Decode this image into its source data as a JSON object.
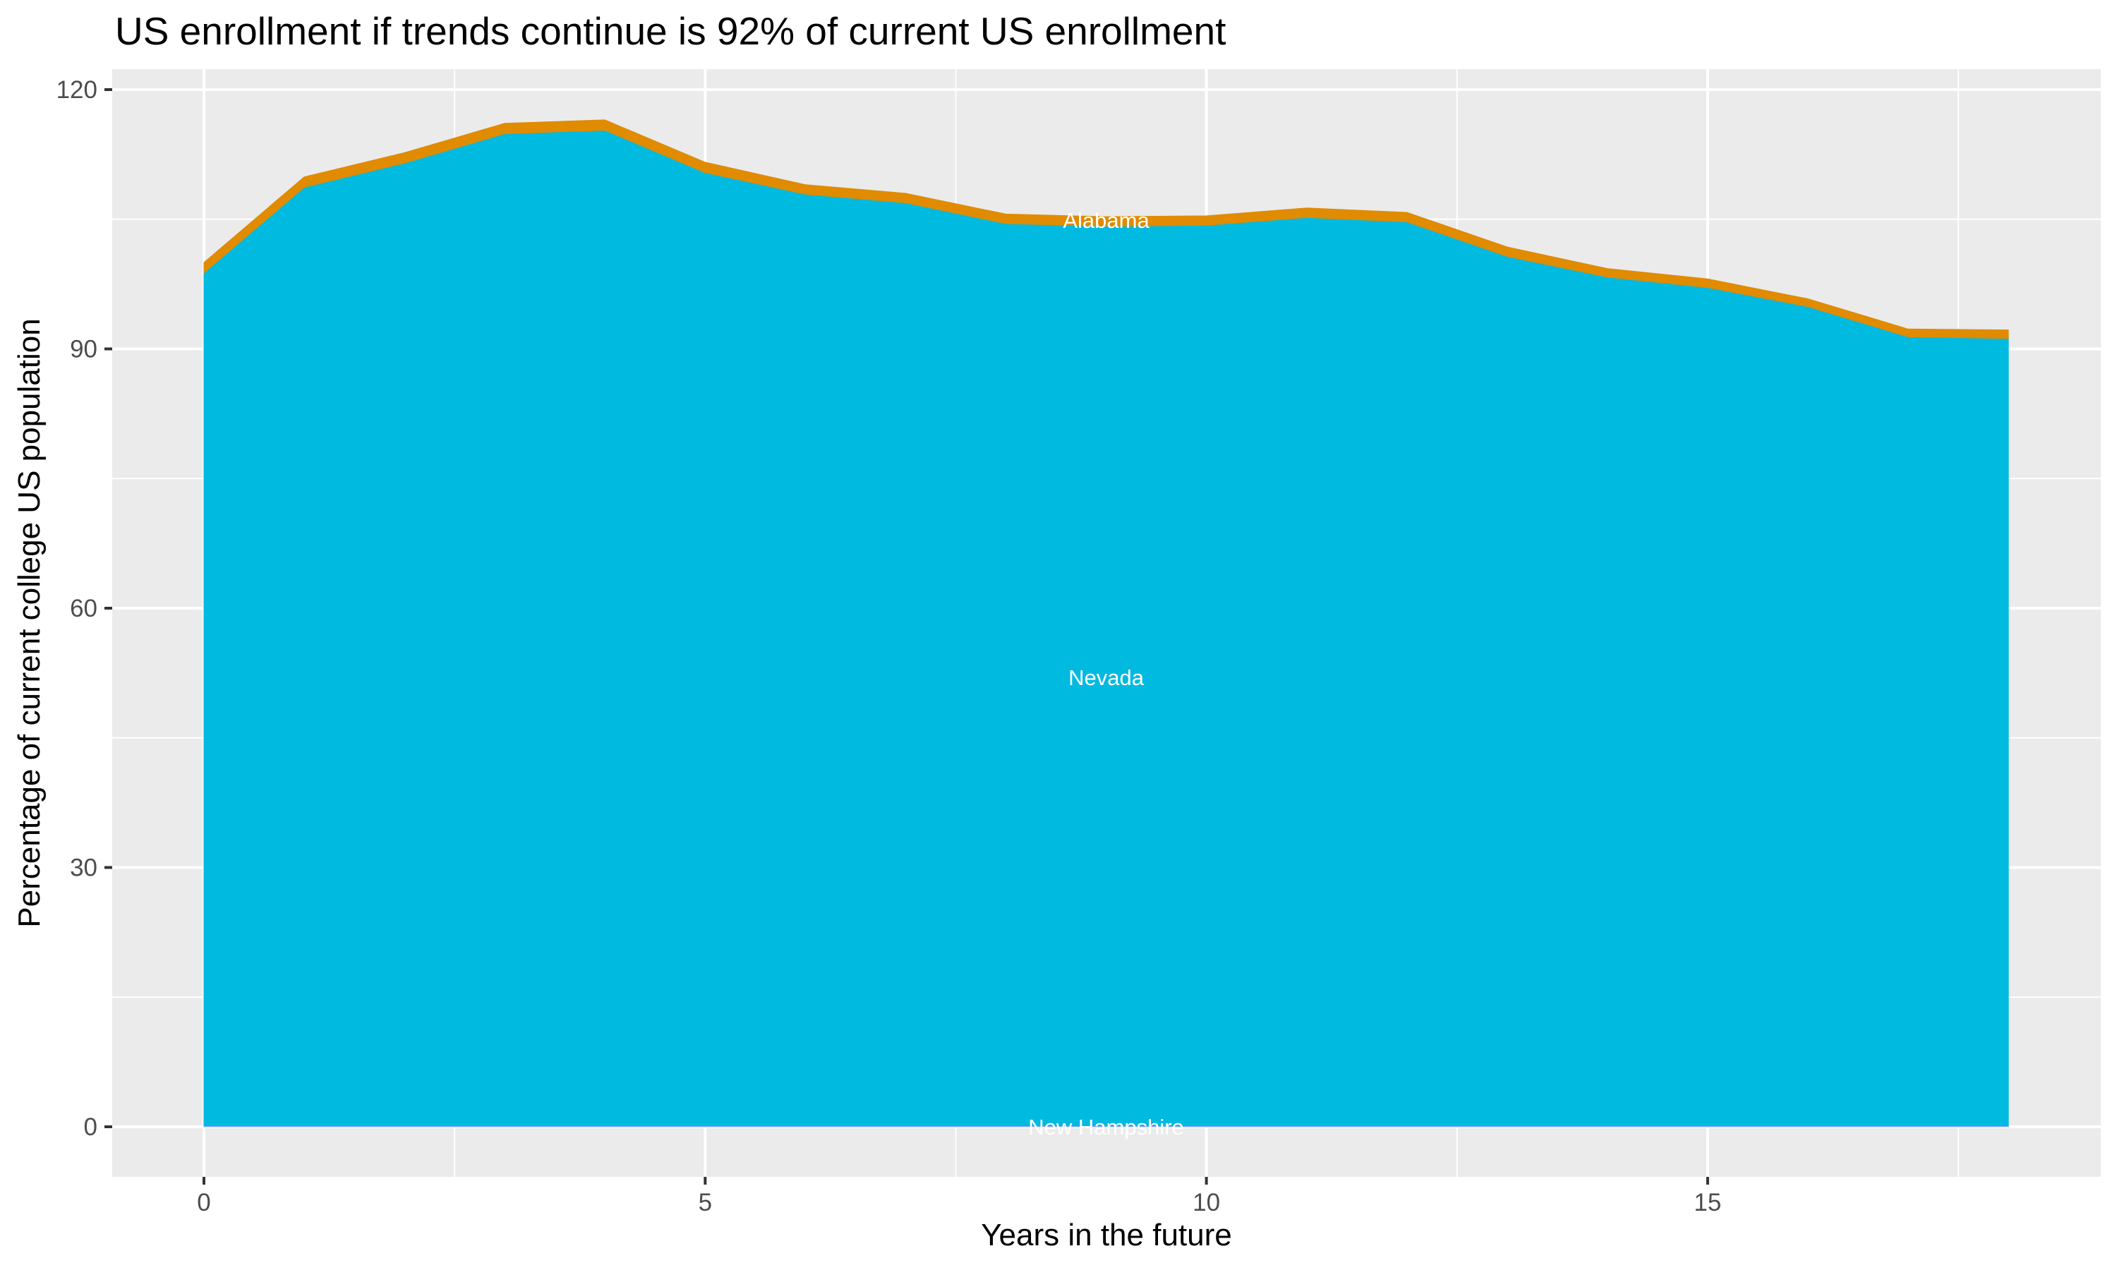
{
  "chart_data": {
    "type": "area",
    "stacked": true,
    "title": "US enrollment if trends continue is 92% of current US enrollment",
    "xlabel": "Years in the future",
    "ylabel": "Percentage of current college US population",
    "x": [
      0,
      1,
      2,
      3,
      4,
      5,
      6,
      7,
      8,
      9,
      10,
      11,
      12,
      13,
      14,
      15,
      16,
      17,
      18
    ],
    "series": [
      {
        "name": "New Hampshire",
        "color": "#A9A3F5",
        "values": [
          0.1,
          0.1,
          0.1,
          0.1,
          0.1,
          0.1,
          0.1,
          0.1,
          0.1,
          0.1,
          0.1,
          0.1,
          0.1,
          0.1,
          0.1,
          0.1,
          0.1,
          0.1,
          0.1
        ]
      },
      {
        "name": "Nevada",
        "color": "#00BAE0",
        "values": [
          98.7,
          108.6,
          111.4,
          114.8,
          115.2,
          110.3,
          107.8,
          106.8,
          104.4,
          104.1,
          104.2,
          105.1,
          104.6,
          100.6,
          98.2,
          97.0,
          94.8,
          91.3,
          91.1
        ]
      },
      {
        "name": "Alabama",
        "color": "#E08B00",
        "values": [
          1.2,
          1.2,
          1.2,
          1.2,
          1.2,
          1.2,
          1.1,
          1.1,
          1.1,
          1.1,
          1.1,
          1.1,
          1.1,
          1.1,
          1.0,
          1.0,
          0.9,
          0.9,
          1.0
        ]
      }
    ],
    "series_labels": [
      {
        "text": "Alabama",
        "x": 9,
        "y": 104.9
      },
      {
        "text": "Nevada",
        "x": 9,
        "y": 52
      },
      {
        "text": "New Hampshire",
        "x": 9,
        "y": 0
      }
    ],
    "xlim": [
      -1.75,
      19.0
    ],
    "ylim": [
      -6.0,
      122.3
    ],
    "x_ticks": [
      0,
      5,
      10,
      15
    ],
    "x_tick_labels": [
      "0",
      "5",
      "10",
      "15"
    ],
    "x_minor": [
      2.5,
      7.5,
      12.5,
      17.5
    ],
    "y_ticks": [
      0,
      30,
      60,
      90,
      120
    ],
    "y_tick_labels": [
      "0",
      "30",
      "60",
      "90",
      "120"
    ],
    "y_minor": [
      15,
      45,
      75,
      105
    ],
    "grid": true,
    "legend": "none",
    "panel_background": "#EBEBEB",
    "grid_color": "#FFFFFF"
  }
}
